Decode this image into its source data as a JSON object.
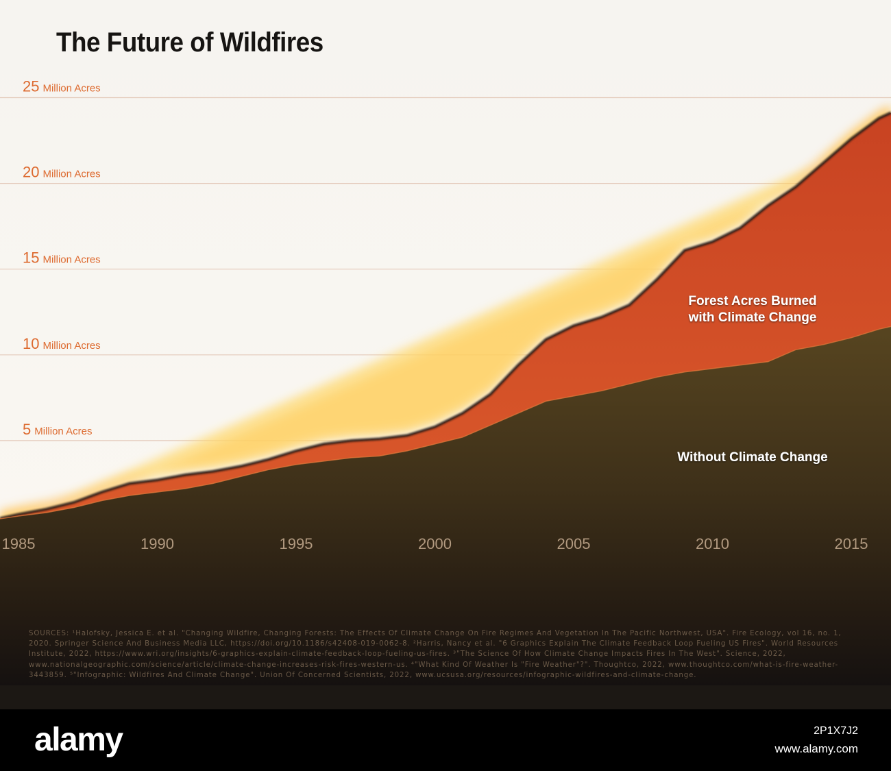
{
  "title": "The Future of Wildfires",
  "chart_data": {
    "type": "area",
    "title": "The Future of Wildfires",
    "x": [
      1985,
      1986,
      1987,
      1988,
      1989,
      1990,
      1991,
      1992,
      1993,
      1994,
      1995,
      1996,
      1997,
      1998,
      1999,
      2000,
      2001,
      2002,
      2003,
      2004,
      2005,
      2006,
      2007,
      2008,
      2009,
      2010,
      2011,
      2012,
      2013,
      2014,
      2015,
      2016
    ],
    "x_ticks": [
      "1985",
      "1990",
      "1995",
      "2000",
      "2005",
      "2010",
      "2015"
    ],
    "y_ticks": [
      {
        "value": 5,
        "number": "5",
        "unit": "Million Acres"
      },
      {
        "value": 10,
        "number": "10",
        "unit": "Million Acres"
      },
      {
        "value": 15,
        "number": "15",
        "unit": "Million Acres"
      },
      {
        "value": 20,
        "number": "20",
        "unit": "Million Acres"
      },
      {
        "value": 25,
        "number": "25",
        "unit": "Million Acres"
      }
    ],
    "ylim": [
      0,
      25.5
    ],
    "xlim": [
      1985,
      2016
    ],
    "series": [
      {
        "name": "Without Climate Change",
        "color": "#4e3d1c",
        "values": [
          0.6,
          0.8,
          1.1,
          1.5,
          1.8,
          2.0,
          2.2,
          2.5,
          2.9,
          3.3,
          3.6,
          3.8,
          4.0,
          4.1,
          4.4,
          4.8,
          5.2,
          5.9,
          6.6,
          7.3,
          7.6,
          7.9,
          8.3,
          8.7,
          9.0,
          9.2,
          9.4,
          9.6,
          10.3,
          10.6,
          11.0,
          11.5
        ]
      },
      {
        "name": "Forest Acres Burned with Climate Change",
        "color": "#d5532a",
        "values": [
          0.7,
          1.0,
          1.4,
          2.0,
          2.5,
          2.7,
          3.0,
          3.2,
          3.5,
          3.9,
          4.4,
          4.8,
          5.0,
          5.1,
          5.3,
          5.8,
          6.6,
          7.7,
          9.4,
          10.9,
          11.7,
          12.2,
          12.9,
          14.4,
          16.1,
          16.6,
          17.4,
          18.7,
          19.8,
          21.2,
          22.6,
          23.8
        ]
      }
    ],
    "series_labels": {
      "with": [
        "Forest Acres Burned",
        "with Climate Change"
      ],
      "without": "Without Climate Change"
    },
    "grid": true
  },
  "sources": "SOURCES: ¹Halofsky, Jessica E. et al. \"Changing Wildfire, Changing Forests: The Effects Of Climate Change On Fire Regimes And Vegetation In The Pacific Northwest, USA\". Fire Ecology, vol 16, no. 1, 2020. Springer Science And Business Media LLC, https://doi.org/10.1186/s42408-019-0062-8. ²Harris, Nancy et al. \"6 Graphics Explain The Climate Feedback Loop Fueling US Fires\". World Resources Institute, 2022, https://www.wri.org/insights/6-graphics-explain-climate-feedback-loop-fueling-us-fires. ³\"The Science Of How Climate Change Impacts Fires In The West\". Science, 2022, www.nationalgeographic.com/science/article/climate-change-increases-risk-fires-western-us. ⁴\"What Kind Of Weather Is \"Fire Weather\"?\". Thoughtco, 2022, www.thoughtco.com/what-is-fire-weather-3443859. ⁵\"Infographic: Wildfires And Climate Change\". Union Of Concerned Scientists, 2022, www.ucsusa.org/resources/infographic-wildfires-and-climate-change.",
  "watermark": {
    "logo": "alamy",
    "image_id": "2P1X7J2",
    "url": "www.alamy.com"
  }
}
